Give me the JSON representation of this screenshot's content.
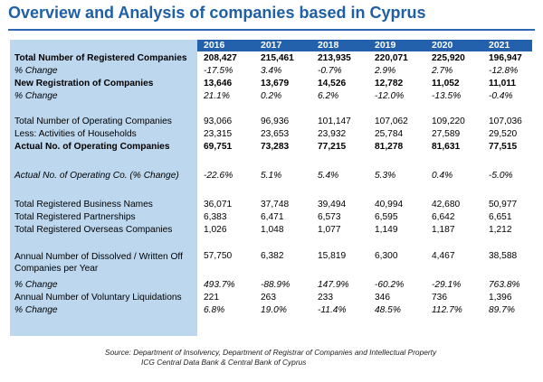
{
  "title": "Overview and Analysis of companies based in Cyprus",
  "colors": {
    "title": "#1f5fa6",
    "header_band": "#2461ad",
    "label_column": "#bcd7ee"
  },
  "table": {
    "years": [
      "2016",
      "2017",
      "2018",
      "2019",
      "2020",
      "2021"
    ],
    "rows": {
      "total_registered": {
        "label": "Total Number of Registered Companies",
        "values": [
          "208,427",
          "215,461",
          "213,935",
          "220,071",
          "225,920",
          "196,947"
        ]
      },
      "total_registered_change": {
        "label": "% Change",
        "values": [
          "-17.5%",
          "3.4%",
          "-0.7%",
          "2.9%",
          "2.7%",
          "-12.8%"
        ]
      },
      "new_registration": {
        "label": "New Registration of Companies",
        "values": [
          "13,646",
          "13,679",
          "14,526",
          "12,782",
          "11,052",
          "11,011"
        ]
      },
      "new_registration_change": {
        "label": "% Change",
        "values": [
          "21.1%",
          "0.2%",
          "6.2%",
          "-12.0%",
          "-13.5%",
          "-0.4%"
        ]
      },
      "total_operating": {
        "label": "Total Number of Operating Companies",
        "values": [
          "93,066",
          "96,936",
          "101,147",
          "107,062",
          "109,220",
          "107,036"
        ]
      },
      "households": {
        "label": "Less: Activities of Households",
        "values": [
          "23,315",
          "23,653",
          "23,932",
          "25,784",
          "27,589",
          "29,520"
        ]
      },
      "actual_operating": {
        "label": "Actual No. of Operating Companies",
        "values": [
          "69,751",
          "73,283",
          "77,215",
          "81,278",
          "81,631",
          "77,515"
        ]
      },
      "actual_operating_change": {
        "label": "Actual No. of Operating Co. (% Change)",
        "values": [
          "-22.6%",
          "5.1%",
          "5.4%",
          "5.3%",
          "0.4%",
          "-5.0%"
        ]
      },
      "business_names": {
        "label": "Total Registered Business Names",
        "values": [
          "36,071",
          "37,748",
          "39,494",
          "40,994",
          "42,680",
          "50,977"
        ]
      },
      "partnerships": {
        "label": "Total Registered Partnerships",
        "values": [
          "6,383",
          "6,471",
          "6,573",
          "6,595",
          "6,642",
          "6,651"
        ]
      },
      "overseas": {
        "label": "Total Registered Overseas Companies",
        "values": [
          "1,026",
          "1,048",
          "1,077",
          "1,149",
          "1,187",
          "1,212"
        ]
      },
      "dissolved": {
        "label": "Annual Number of Dissolved / Written Off Companies per Year",
        "values": [
          "57,750",
          "6,382",
          "15,819",
          "6,300",
          "4,467",
          "38,588"
        ]
      },
      "dissolved_change": {
        "label": "% Change",
        "values": [
          "493.7%",
          "-88.9%",
          "147.9%",
          "-60.2%",
          "-29.1%",
          "763.8%"
        ]
      },
      "voluntary": {
        "label": "Annual Number of Voluntary Liquidations",
        "values": [
          "221",
          "263",
          "233",
          "346",
          "736",
          "1,396"
        ]
      },
      "voluntary_change": {
        "label": "% Change",
        "values": [
          "6.8%",
          "19.0%",
          "-11.4%",
          "48.5%",
          "112.7%",
          "89.7%"
        ]
      }
    }
  },
  "source": {
    "line1": "Source: Department of Insolvency, Department of Registrar of Companies and Intellectual Property",
    "line2": "ICG Central Data Bank & Central Bank of Cyprus"
  }
}
